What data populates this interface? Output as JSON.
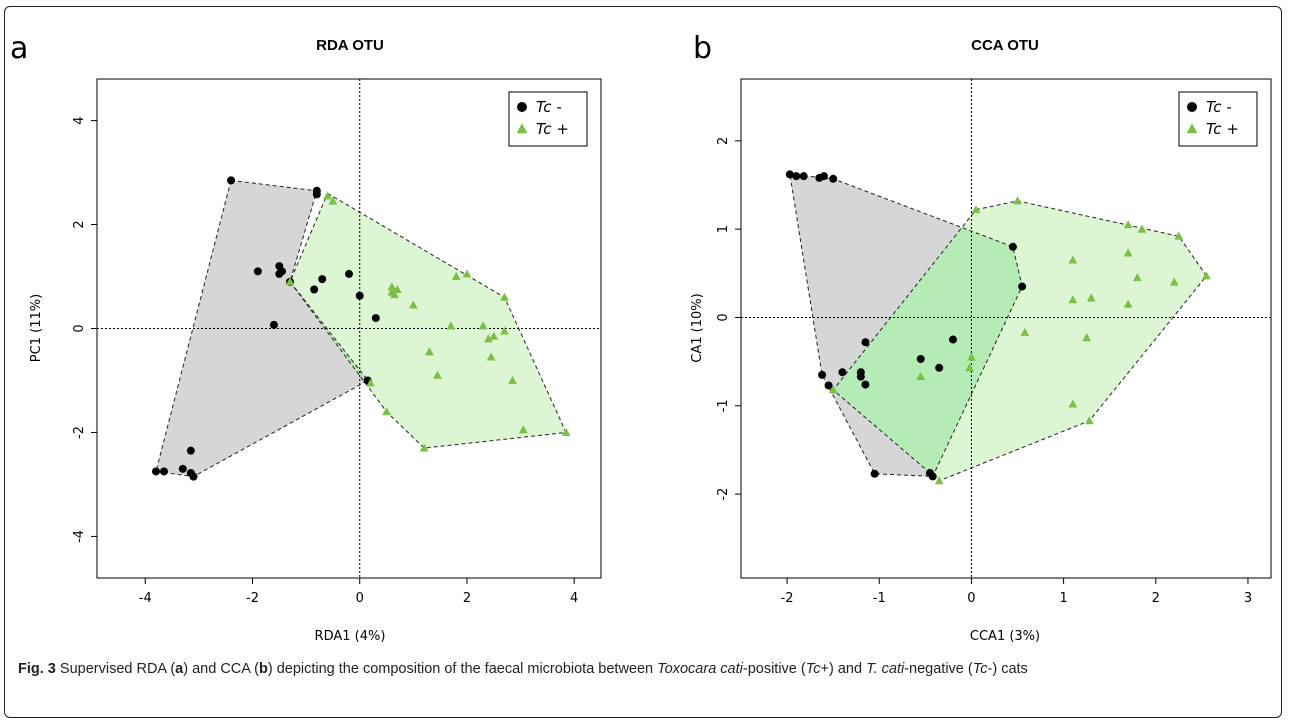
{
  "caption": {
    "fig_label": "Fig. 3",
    "parts": [
      {
        "t": " Supervised RDA (",
        "s": "n"
      },
      {
        "t": "a",
        "s": "b"
      },
      {
        "t": ") and CCA (",
        "s": "n"
      },
      {
        "t": "b",
        "s": "b"
      },
      {
        "t": ") depicting the composition of the faecal microbiota between ",
        "s": "n"
      },
      {
        "t": "Toxocara cati",
        "s": "i"
      },
      {
        "t": "-positive (",
        "s": "n"
      },
      {
        "t": "Tc",
        "s": "i"
      },
      {
        "t": "+) and ",
        "s": "n"
      },
      {
        "t": "T. cati",
        "s": "i"
      },
      {
        "t": "-negative (",
        "s": "n"
      },
      {
        "t": "Tc",
        "s": "i"
      },
      {
        "t": "-) cats",
        "s": "n"
      }
    ]
  },
  "colors": {
    "neg_point": "#000000",
    "pos_point": "#7ac143",
    "neg_hull_fill": "#d6d6d6",
    "pos_hull_fill": "#dcf5d2",
    "overlap_fill": "#b5ecb5"
  },
  "chart_data": [
    {
      "type": "scatter",
      "panel_label": "a",
      "title": "RDA OTU",
      "xlabel": "RDA1 (4%)",
      "ylabel": "PC1 (11%)",
      "xlim": [
        -4.9,
        4.5
      ],
      "ylim": [
        -4.8,
        4.8
      ],
      "xticks": [
        -4,
        -2,
        0,
        2,
        4
      ],
      "yticks": [
        -4,
        -2,
        0,
        2,
        4
      ],
      "grid": false,
      "reference_lines": {
        "x": 0,
        "y": 0
      },
      "legend": {
        "position": "top-right",
        "entries": [
          {
            "label": "Tc",
            "suffix": " -",
            "marker": "circle"
          },
          {
            "label": "Tc",
            "suffix": " +",
            "marker": "triangle"
          }
        ]
      },
      "series": [
        {
          "label": "Tc -",
          "marker": "circle",
          "points": [
            [
              -2.4,
              2.85
            ],
            [
              -0.8,
              2.65
            ],
            [
              -0.8,
              2.58
            ],
            [
              -1.9,
              1.1
            ],
            [
              -1.5,
              1.2
            ],
            [
              -1.5,
              1.05
            ],
            [
              -1.45,
              1.1
            ],
            [
              -1.3,
              0.9
            ],
            [
              -0.7,
              0.95
            ],
            [
              -0.85,
              0.75
            ],
            [
              -0.2,
              1.05
            ],
            [
              0,
              0.63
            ],
            [
              0.3,
              0.2
            ],
            [
              -1.6,
              0.07
            ],
            [
              0.15,
              -1.0
            ],
            [
              -3.15,
              -2.35
            ],
            [
              -3.8,
              -2.75
            ],
            [
              -3.65,
              -2.75
            ],
            [
              -3.3,
              -2.7
            ],
            [
              -3.15,
              -2.78
            ],
            [
              -3.1,
              -2.85
            ]
          ],
          "hull": [
            [
              -2.4,
              2.85
            ],
            [
              -0.8,
              2.65
            ],
            [
              -1.3,
              0.9
            ],
            [
              0.15,
              -1.0
            ],
            [
              -3.1,
              -2.85
            ],
            [
              -3.8,
              -2.75
            ]
          ]
        },
        {
          "label": "Tc +",
          "marker": "triangle",
          "points": [
            [
              -0.6,
              2.55
            ],
            [
              -0.5,
              2.45
            ],
            [
              -1.3,
              0.9
            ],
            [
              0.6,
              0.8
            ],
            [
              0.6,
              0.7
            ],
            [
              0.7,
              0.75
            ],
            [
              0.65,
              0.65
            ],
            [
              1.0,
              0.45
            ],
            [
              1.8,
              1.0
            ],
            [
              2.0,
              1.05
            ],
            [
              2.7,
              0.6
            ],
            [
              1.7,
              0.05
            ],
            [
              2.3,
              0.05
            ],
            [
              2.4,
              -0.2
            ],
            [
              2.5,
              -0.15
            ],
            [
              2.7,
              -0.05
            ],
            [
              1.3,
              -0.45
            ],
            [
              2.45,
              -0.55
            ],
            [
              1.45,
              -0.9
            ],
            [
              2.85,
              -1.0
            ],
            [
              0.5,
              -1.6
            ],
            [
              3.05,
              -1.95
            ],
            [
              3.85,
              -2.0
            ],
            [
              1.2,
              -2.3
            ],
            [
              0.2,
              -1.05
            ]
          ],
          "hull": [
            [
              -0.6,
              2.6
            ],
            [
              2.7,
              0.6
            ],
            [
              3.85,
              -2.0
            ],
            [
              1.2,
              -2.3
            ],
            [
              0.5,
              -1.6
            ],
            [
              -1.3,
              0.9
            ]
          ]
        }
      ]
    },
    {
      "type": "scatter",
      "panel_label": "b",
      "title": "CCA OTU",
      "xlabel": "CCA1 (3%)",
      "ylabel": "CA1 (10%)",
      "xlim": [
        -2.5,
        3.25
      ],
      "ylim": [
        -2.95,
        2.7
      ],
      "xticks": [
        -2,
        -1,
        0,
        1,
        2,
        3
      ],
      "yticks": [
        -2,
        -1,
        0,
        1,
        2
      ],
      "grid": false,
      "reference_lines": {
        "x": 0,
        "y": 0
      },
      "legend": {
        "position": "top-right",
        "entries": [
          {
            "label": "Tc",
            "suffix": " -",
            "marker": "circle"
          },
          {
            "label": "Tc",
            "suffix": " +",
            "marker": "triangle"
          }
        ]
      },
      "series": [
        {
          "label": "Tc -",
          "marker": "circle",
          "points": [
            [
              -1.97,
              1.62
            ],
            [
              -1.9,
              1.6
            ],
            [
              -1.82,
              1.6
            ],
            [
              -1.65,
              1.58
            ],
            [
              -1.6,
              1.6
            ],
            [
              -1.5,
              1.57
            ],
            [
              0.45,
              0.8
            ],
            [
              0.55,
              0.35
            ],
            [
              -1.15,
              -0.28
            ],
            [
              -0.2,
              -0.25
            ],
            [
              -0.55,
              -0.47
            ],
            [
              -0.35,
              -0.57
            ],
            [
              -1.4,
              -0.62
            ],
            [
              -1.2,
              -0.62
            ],
            [
              -1.2,
              -0.67
            ],
            [
              -1.15,
              -0.76
            ],
            [
              -1.62,
              -0.65
            ],
            [
              -1.55,
              -0.77
            ],
            [
              -1.05,
              -1.77
            ],
            [
              -0.45,
              -1.76
            ],
            [
              -0.42,
              -1.8
            ]
          ],
          "hull": [
            [
              -1.97,
              1.62
            ],
            [
              -1.5,
              1.57
            ],
            [
              0.45,
              0.8
            ],
            [
              0.55,
              0.35
            ],
            [
              -0.42,
              -1.8
            ],
            [
              -1.05,
              -1.77
            ],
            [
              -1.62,
              -0.65
            ]
          ]
        },
        {
          "label": "Tc +",
          "marker": "triangle",
          "points": [
            [
              0.5,
              1.32
            ],
            [
              0.05,
              1.22
            ],
            [
              1.7,
              1.05
            ],
            [
              1.85,
              1.0
            ],
            [
              2.25,
              0.92
            ],
            [
              1.1,
              0.65
            ],
            [
              1.7,
              0.73
            ],
            [
              1.8,
              0.45
            ],
            [
              2.55,
              0.47
            ],
            [
              2.2,
              0.4
            ],
            [
              1.1,
              0.2
            ],
            [
              1.3,
              0.22
            ],
            [
              1.7,
              0.15
            ],
            [
              0.58,
              -0.17
            ],
            [
              1.25,
              -0.23
            ],
            [
              -0.55,
              -0.67
            ],
            [
              -1.5,
              -0.82
            ],
            [
              0.0,
              -0.45
            ],
            [
              -0.02,
              -0.57
            ],
            [
              1.1,
              -0.98
            ],
            [
              1.28,
              -1.17
            ],
            [
              -0.35,
              -1.85
            ]
          ],
          "hull": [
            [
              0.05,
              1.22
            ],
            [
              0.5,
              1.32
            ],
            [
              2.25,
              0.92
            ],
            [
              2.55,
              0.47
            ],
            [
              1.28,
              -1.17
            ],
            [
              -0.35,
              -1.85
            ],
            [
              -1.5,
              -0.82
            ]
          ]
        }
      ]
    }
  ]
}
